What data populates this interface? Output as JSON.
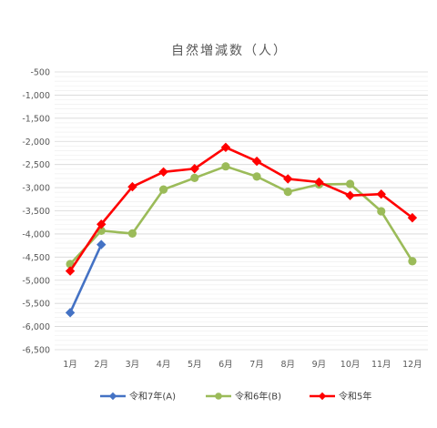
{
  "chart_data": {
    "type": "line",
    "title": "自然増減数（人）",
    "categories": [
      "1月",
      "2月",
      "3月",
      "4月",
      "5月",
      "6月",
      "7月",
      "8月",
      "9月",
      "10月",
      "11月",
      "12月"
    ],
    "ylim": [
      -6500,
      -500
    ],
    "ytick_step": 500,
    "yticks": [
      "-500",
      "-1,000",
      "-1,500",
      "-2,000",
      "-2,500",
      "-3,000",
      "-3,500",
      "-4,000",
      "-4,500",
      "-5,000",
      "-5,500",
      "-6,000",
      "-6,500"
    ],
    "grid": true,
    "legend_position": "bottom",
    "series": [
      {
        "name": "令和7年(A)",
        "color": "#4472C4",
        "marker": "diamond",
        "values": [
          -5700,
          -4230,
          null,
          null,
          null,
          null,
          null,
          null,
          null,
          null,
          null,
          null
        ]
      },
      {
        "name": "令和6年(B)",
        "color": "#9BBB59",
        "marker": "circle",
        "values": [
          -4650,
          -3930,
          -3990,
          -3040,
          -2790,
          -2540,
          -2760,
          -3090,
          -2930,
          -2920,
          -3510,
          -4590
        ]
      },
      {
        "name": "令和5年",
        "color": "#FF0000",
        "marker": "diamond",
        "values": [
          -4800,
          -3790,
          -2980,
          -2660,
          -2590,
          -2130,
          -2430,
          -2810,
          -2880,
          -3170,
          -3140,
          -3650
        ]
      }
    ]
  }
}
